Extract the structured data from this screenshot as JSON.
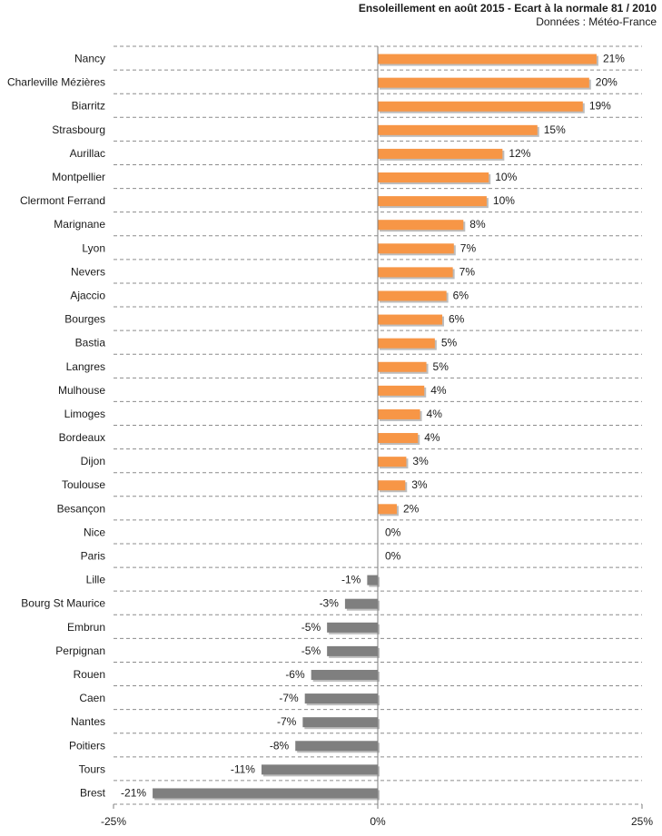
{
  "chart_data": {
    "type": "bar",
    "orientation": "horizontal",
    "title": "Ensoleillement en août 2015 - Ecart à la normale 81 / 2010",
    "subtitle": "Données : Météo-France",
    "value_suffix": "%",
    "xlim": [
      -25,
      25
    ],
    "x_ticks": [
      {
        "value": -25,
        "label": "-25%"
      },
      {
        "value": 0,
        "label": "0%"
      },
      {
        "value": 25,
        "label": "25%"
      }
    ],
    "grid": "horizontal dashed",
    "colors": {
      "positive": "#f79646",
      "negative": "#7f7f7f",
      "shadow": "#bdbdbd",
      "grid": "#8c8c8c",
      "text": "#1a1a1a"
    },
    "categories": [
      "Nancy",
      "Charleville Mézières",
      "Biarritz",
      "Strasbourg",
      "Aurillac",
      "Montpellier",
      "Clermont Ferrand",
      "Marignane",
      "Lyon",
      "Nevers",
      "Ajaccio",
      "Bourges",
      "Bastia",
      "Langres",
      "Mulhouse",
      "Limoges",
      "Bordeaux",
      "Dijon",
      "Toulouse",
      "Besançon",
      "Nice",
      "Paris",
      "Lille",
      "Bourg St Maurice",
      "Embrun",
      "Perpignan",
      "Rouen",
      "Caen",
      "Nantes",
      "Poitiers",
      "Tours",
      "Brest"
    ],
    "values": [
      20.7,
      20.0,
      19.4,
      15.1,
      11.8,
      10.5,
      10.3,
      8.1,
      7.2,
      7.1,
      6.5,
      6.1,
      5.4,
      4.6,
      4.4,
      4.0,
      3.8,
      2.7,
      2.6,
      1.8,
      0,
      0,
      -1.0,
      -3.1,
      -4.8,
      -4.8,
      -6.3,
      -6.9,
      -7.1,
      -7.8,
      -11.0,
      -21.3
    ],
    "labels": [
      "21%",
      "20%",
      "19%",
      "15%",
      "12%",
      "10%",
      "10%",
      "8%",
      "7%",
      "7%",
      "6%",
      "6%",
      "5%",
      "5%",
      "4%",
      "4%",
      "4%",
      "3%",
      "3%",
      "2%",
      "0%",
      "0%",
      "-1%",
      "-3%",
      "-5%",
      "-5%",
      "-6%",
      "-7%",
      "-7%",
      "-8%",
      "-11%",
      "-21%"
    ]
  }
}
